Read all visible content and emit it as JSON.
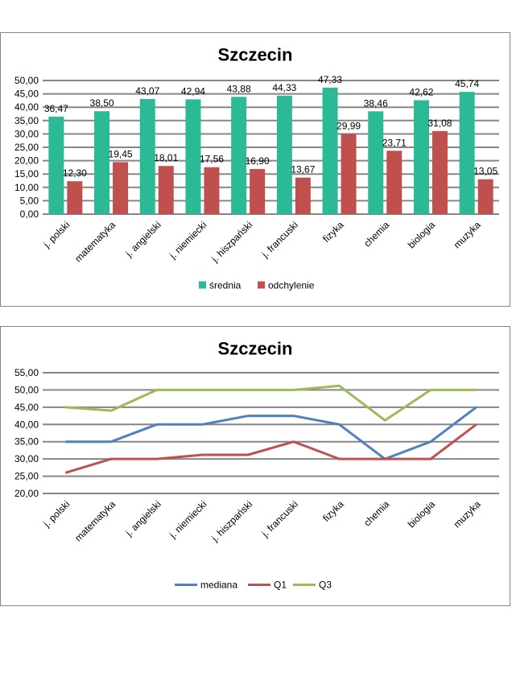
{
  "chart_data": [
    {
      "type": "bar",
      "title": "Szczecin",
      "categories": [
        "j. polski",
        "matematyka",
        "j. angielski",
        "j. niemiecki",
        "j. hiszpański",
        "j. francuski",
        "fizyka",
        "chemia",
        "biologia",
        "muzyka"
      ],
      "series": [
        {
          "name": "średnia",
          "color": "#2bb996",
          "values": [
            36.47,
            38.5,
            43.07,
            42.94,
            43.88,
            44.33,
            47.33,
            38.46,
            42.62,
            45.74
          ],
          "labels": [
            "36,47",
            "38,50",
            "43,07",
            "42,94",
            "43,88",
            "44,33",
            "47,33",
            "38,46",
            "42,62",
            "45,74"
          ]
        },
        {
          "name": "odchylenie",
          "color": "#c0504d",
          "values": [
            12.3,
            19.45,
            18.01,
            17.56,
            16.9,
            13.67,
            29.99,
            23.71,
            31.08,
            13.05
          ],
          "labels": [
            "12,30",
            "19,45",
            "18,01",
            "17,56",
            "16,90",
            "13,67",
            "29,99",
            "23,71",
            "31,08",
            "13,05"
          ]
        }
      ],
      "ylim": [
        0,
        50
      ],
      "yticks": [
        "0,00",
        "5,00",
        "10,00",
        "15,00",
        "20,00",
        "25,00",
        "30,00",
        "35,00",
        "40,00",
        "45,00",
        "50,00"
      ],
      "grid": true,
      "legend": "bottom"
    },
    {
      "type": "line",
      "title": "Szczecin",
      "categories": [
        "j. polski",
        "matematyka",
        "j. angielski",
        "j. niemiecki",
        "j. hiszpański",
        "j. francuski",
        "fizyka",
        "chemia",
        "biologia",
        "muzyka"
      ],
      "series": [
        {
          "name": "mediana",
          "color": "#4f81bd",
          "values": [
            35,
            35,
            40,
            40,
            42.5,
            42.5,
            40,
            30,
            35,
            45
          ]
        },
        {
          "name": "Q1",
          "color": "#c0504d",
          "values": [
            26,
            30,
            30,
            31.2,
            31.2,
            35,
            30,
            30,
            30,
            40
          ]
        },
        {
          "name": "Q3",
          "color": "#9bbb59",
          "values": [
            45,
            44,
            50,
            50,
            50,
            50,
            51.2,
            41.2,
            50,
            50
          ]
        }
      ],
      "ylim": [
        20,
        55
      ],
      "yticks": [
        "20,00",
        "25,00",
        "30,00",
        "35,00",
        "40,00",
        "45,00",
        "50,00",
        "55,00"
      ],
      "grid": true,
      "legend": "bottom"
    }
  ]
}
